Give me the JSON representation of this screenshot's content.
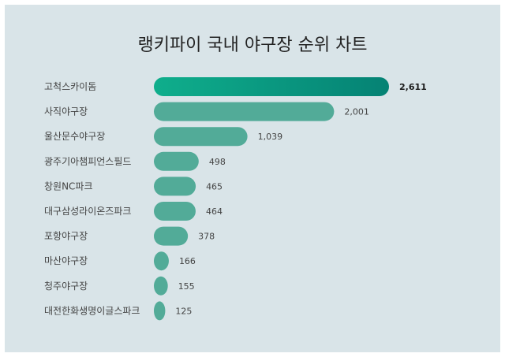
{
  "chart_data": {
    "type": "bar",
    "orientation": "horizontal",
    "title": "랭키파이 국내 야구장 순위 차트",
    "categories": [
      "고척스카이돔",
      "사직야구장",
      "울산문수야구장",
      "광주기아챔피언스필드",
      "창원NC파크",
      "대구삼성라이온즈파크",
      "포항야구장",
      "마산야구장",
      "청주야구장",
      "대전한화생명이글스파크"
    ],
    "values": [
      2611,
      2001,
      1039,
      498,
      465,
      464,
      378,
      166,
      155,
      125
    ],
    "value_labels": [
      "2,611",
      "2,001",
      "1,039",
      "498",
      "465",
      "464",
      "378",
      "166",
      "155",
      "125"
    ],
    "xlim": [
      0,
      2611
    ],
    "grid": false,
    "legend": "none"
  },
  "colors": {
    "card_background": "#d9e4e8",
    "bar": "#52ab98",
    "top_bar_gradient_start": "#0fae8c",
    "top_bar_gradient_end": "#058274"
  }
}
